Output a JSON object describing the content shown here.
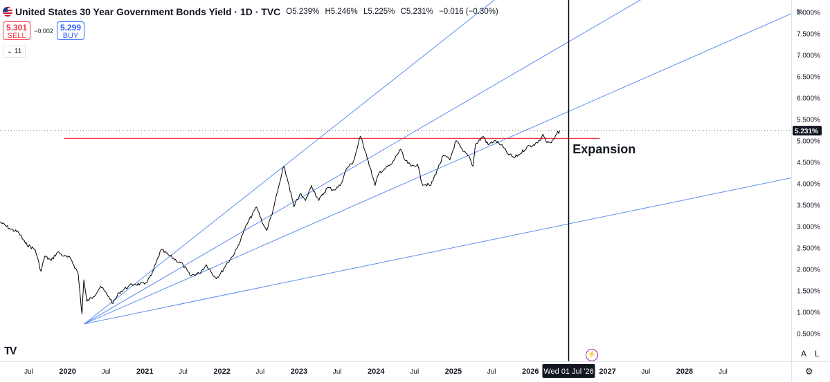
{
  "header": {
    "title": "United States 30 Year Government Bonds Yield · 1D · TVC",
    "open": "O5.239%",
    "high": "H5.246%",
    "low": "L5.225%",
    "close": "C5.231%",
    "change": "−0.016 (−0.30%)"
  },
  "trade": {
    "sell_price": "5.301",
    "sell_label": "SELL",
    "spread": "−0.002",
    "buy_price": "5.299",
    "buy_label": "BUY"
  },
  "indicators_toggle": "11",
  "axis_unit": "%",
  "annotation": "Expansion",
  "crosshair_label": "Wed 01 Jul '26",
  "last_price_label": "5.231%",
  "buttons": {
    "auto": "A",
    "log": "L"
  },
  "colors": {
    "price": "#000000",
    "trendlines": "#5b8def",
    "horizontal_level": "#f23645",
    "crosshair": "#000000"
  },
  "chart_data": {
    "type": "line",
    "symbol": "United States 30 Year Government Bonds Yield",
    "interval": "1D",
    "y_unit": "%",
    "ylim": [
      0.3,
      8.2
    ],
    "y_ticks": [
      "8.000%",
      "7.500%",
      "7.000%",
      "6.500%",
      "6.000%",
      "5.500%",
      "5.000%",
      "4.500%",
      "4.000%",
      "3.500%",
      "3.000%",
      "2.500%",
      "2.000%",
      "1.500%",
      "1.000%",
      "0.500%"
    ],
    "x_range": [
      "2019-02-15",
      "2029-05-20"
    ],
    "x_ticks": [
      "Jul",
      "2020",
      "Jul",
      "2021",
      "Jul",
      "2022",
      "Jul",
      "2023",
      "Jul",
      "2024",
      "Jul",
      "2025",
      "Jul",
      "2026",
      "Jul",
      "2027",
      "Jul",
      "2028",
      "Jul"
    ],
    "series": [
      {
        "points": [
          [
            "2019-02-15",
            3.1
          ],
          [
            "2019-04-01",
            2.95
          ],
          [
            "2019-05-15",
            2.85
          ],
          [
            "2019-06-15",
            2.6
          ],
          [
            "2019-08-01",
            2.45
          ],
          [
            "2019-08-28",
            1.95
          ],
          [
            "2019-09-15",
            2.3
          ],
          [
            "2019-10-15",
            2.2
          ],
          [
            "2019-11-15",
            2.4
          ],
          [
            "2019-12-15",
            2.3
          ],
          [
            "2020-01-15",
            2.25
          ],
          [
            "2020-02-20",
            1.9
          ],
          [
            "2020-03-09",
            0.95
          ],
          [
            "2020-03-18",
            1.75
          ],
          [
            "2020-04-01",
            1.25
          ],
          [
            "2020-05-01",
            1.35
          ],
          [
            "2020-06-05",
            1.6
          ],
          [
            "2020-07-15",
            1.35
          ],
          [
            "2020-08-04",
            1.2
          ],
          [
            "2020-09-01",
            1.45
          ],
          [
            "2020-10-15",
            1.6
          ],
          [
            "2020-11-15",
            1.65
          ],
          [
            "2020-12-31",
            1.65
          ],
          [
            "2021-02-01",
            1.85
          ],
          [
            "2021-03-19",
            2.45
          ],
          [
            "2021-05-01",
            2.3
          ],
          [
            "2021-07-01",
            2.1
          ],
          [
            "2021-08-03",
            1.85
          ],
          [
            "2021-09-15",
            1.9
          ],
          [
            "2021-10-20",
            2.1
          ],
          [
            "2021-12-01",
            1.8
          ],
          [
            "2021-12-20",
            1.85
          ],
          [
            "2022-01-20",
            2.1
          ],
          [
            "2022-02-20",
            2.3
          ],
          [
            "2022-03-15",
            2.5
          ],
          [
            "2022-04-20",
            2.95
          ],
          [
            "2022-05-05",
            3.1
          ],
          [
            "2022-06-14",
            3.45
          ],
          [
            "2022-07-15",
            3.05
          ],
          [
            "2022-08-01",
            2.9
          ],
          [
            "2022-09-01",
            3.4
          ],
          [
            "2022-10-21",
            4.4
          ],
          [
            "2022-11-15",
            3.95
          ],
          [
            "2022-12-08",
            3.45
          ],
          [
            "2023-01-05",
            3.75
          ],
          [
            "2023-02-01",
            3.6
          ],
          [
            "2023-03-01",
            3.95
          ],
          [
            "2023-04-05",
            3.6
          ],
          [
            "2023-05-15",
            3.9
          ],
          [
            "2023-06-15",
            3.85
          ],
          [
            "2023-07-15",
            3.95
          ],
          [
            "2023-08-15",
            4.35
          ],
          [
            "2023-09-15",
            4.5
          ],
          [
            "2023-10-19",
            5.1
          ],
          [
            "2023-11-15",
            4.7
          ],
          [
            "2023-12-27",
            3.95
          ],
          [
            "2024-01-15",
            4.25
          ],
          [
            "2024-02-15",
            4.35
          ],
          [
            "2024-03-15",
            4.45
          ],
          [
            "2024-04-25",
            4.8
          ],
          [
            "2024-05-15",
            4.55
          ],
          [
            "2024-06-15",
            4.4
          ],
          [
            "2024-07-15",
            4.45
          ],
          [
            "2024-08-05",
            4.0
          ],
          [
            "2024-09-16",
            3.95
          ],
          [
            "2024-10-15",
            4.3
          ],
          [
            "2024-11-15",
            4.65
          ],
          [
            "2024-12-15",
            4.55
          ],
          [
            "2025-01-14",
            5.0
          ],
          [
            "2025-02-15",
            4.75
          ],
          [
            "2025-03-15",
            4.65
          ],
          [
            "2025-04-04",
            4.4
          ],
          [
            "2025-04-15",
            4.9
          ],
          [
            "2025-05-22",
            5.1
          ],
          [
            "2025-06-15",
            4.9
          ],
          [
            "2025-07-15",
            5.0
          ],
          [
            "2025-08-15",
            4.9
          ],
          [
            "2025-09-15",
            4.7
          ],
          [
            "2025-10-15",
            4.6
          ],
          [
            "2025-11-15",
            4.7
          ],
          [
            "2025-12-15",
            4.85
          ],
          [
            "2026-01-15",
            4.9
          ],
          [
            "2026-02-15",
            5.0
          ],
          [
            "2026-03-01",
            5.15
          ],
          [
            "2026-03-20",
            4.95
          ],
          [
            "2026-04-10",
            4.95
          ],
          [
            "2026-04-25",
            5.05
          ],
          [
            "2026-05-05",
            5.15
          ],
          [
            "2026-05-20",
            5.23
          ]
        ]
      }
    ],
    "horizontal_level": {
      "y": 5.05,
      "from": "2019-12-15",
      "to": "2026-11-25"
    },
    "trendlines": [
      {
        "from": [
          "2020-03-20",
          0.72
        ],
        "to": [
          "2022-10-21",
          4.4
        ]
      },
      {
        "from": [
          "2020-03-20",
          0.72
        ],
        "to": [
          "2023-07-15",
          4.2
        ]
      },
      {
        "from": [
          "2020-03-20",
          0.72
        ],
        "to": [
          "2025-01-01",
          4.5
        ]
      },
      {
        "from": [
          "2020-03-20",
          0.72
        ],
        "to": [
          "2025-01-01",
          2.5
        ]
      }
    ],
    "crosshair_x": "2026-07-01",
    "last_value": 5.231,
    "annotations": [
      {
        "text": "Expansion",
        "at": [
          "2026-07-20",
          4.7
        ]
      }
    ],
    "grid": false,
    "legend": "none"
  }
}
